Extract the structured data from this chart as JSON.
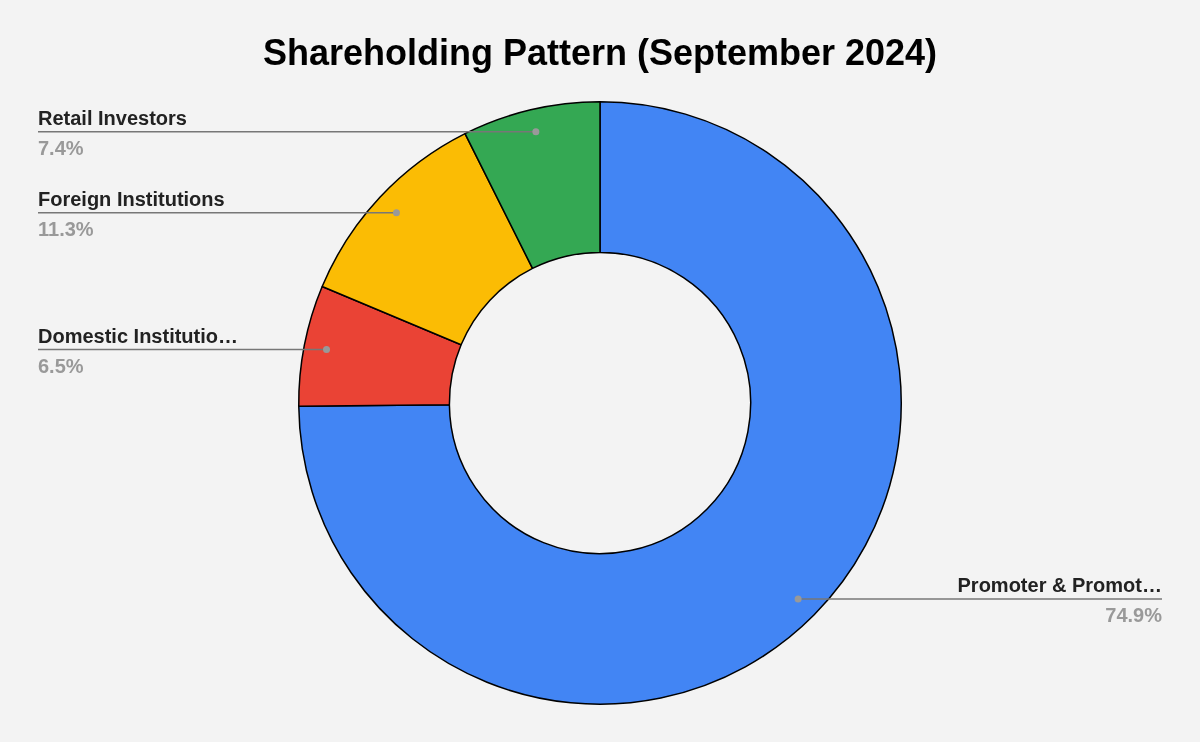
{
  "chart_data": {
    "type": "donut",
    "title": "Shareholding Pattern (September 2024)",
    "categories": [
      "Promoter & Promot…",
      "Domestic Institutio…",
      "Foreign Institutions",
      "Retail Investors"
    ],
    "values": [
      74.9,
      6.5,
      11.3,
      7.4
    ],
    "colors": [
      "#4285f4",
      "#ea4335",
      "#fbbc04",
      "#34a853"
    ],
    "value_labels": [
      "74.9%",
      "6.5%",
      "11.3%",
      "7.4%"
    ],
    "legend": false
  }
}
